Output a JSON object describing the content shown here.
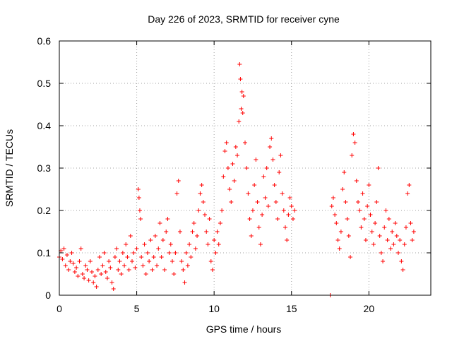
{
  "chart_data": {
    "type": "scatter",
    "title": "Day 226 of 2023, SRMTID for receiver cyne",
    "xlabel": "GPS time / hours",
    "ylabel": "SRMTID / TECUs",
    "xlim": [
      0,
      24
    ],
    "ylim": [
      0,
      0.6
    ],
    "xticks": [
      0,
      5,
      10,
      15,
      20
    ],
    "yticks": [
      0,
      0.1,
      0.2,
      0.3,
      0.4,
      0.5,
      0.6
    ],
    "xtick_labels": [
      "0",
      "5",
      "10",
      "15",
      "20"
    ],
    "ytick_labels": [
      "0",
      "0.1",
      "0.2",
      "0.3",
      "0.4",
      "0.5",
      "0.6"
    ],
    "grid": true,
    "legend": "none",
    "marker": "plus",
    "series": [
      {
        "name": "SRMTID",
        "color": "#ff0000",
        "points": [
          [
            0.0,
            0.09
          ],
          [
            0.1,
            0.105
          ],
          [
            0.2,
            0.085
          ],
          [
            0.3,
            0.11
          ],
          [
            0.4,
            0.07
          ],
          [
            0.5,
            0.095
          ],
          [
            0.6,
            0.06
          ],
          [
            0.7,
            0.08
          ],
          [
            0.8,
            0.1
          ],
          [
            0.9,
            0.075
          ],
          [
            1.0,
            0.055
          ],
          [
            1.1,
            0.065
          ],
          [
            1.2,
            0.045
          ],
          [
            1.3,
            0.08
          ],
          [
            1.4,
            0.11
          ],
          [
            1.5,
            0.05
          ],
          [
            1.6,
            0.04
          ],
          [
            1.7,
            0.07
          ],
          [
            1.8,
            0.06
          ],
          [
            1.9,
            0.035
          ],
          [
            2.0,
            0.08
          ],
          [
            2.1,
            0.055
          ],
          [
            2.2,
            0.03
          ],
          [
            2.3,
            0.045
          ],
          [
            2.4,
            0.02
          ],
          [
            2.5,
            0.06
          ],
          [
            2.6,
            0.09
          ],
          [
            2.7,
            0.05
          ],
          [
            2.8,
            0.07
          ],
          [
            2.9,
            0.1
          ],
          [
            3.0,
            0.055
          ],
          [
            3.1,
            0.04
          ],
          [
            3.2,
            0.08
          ],
          [
            3.3,
            0.065
          ],
          [
            3.4,
            0.03
          ],
          [
            3.5,
            0.015
          ],
          [
            3.6,
            0.09
          ],
          [
            3.7,
            0.11
          ],
          [
            3.8,
            0.06
          ],
          [
            3.9,
            0.08
          ],
          [
            4.0,
            0.05
          ],
          [
            4.1,
            0.1
          ],
          [
            4.2,
            0.07
          ],
          [
            4.3,
            0.12
          ],
          [
            4.4,
            0.09
          ],
          [
            4.5,
            0.06
          ],
          [
            4.6,
            0.14
          ],
          [
            4.7,
            0.08
          ],
          [
            4.8,
            0.1
          ],
          [
            4.9,
            0.065
          ],
          [
            5.0,
            0.11
          ],
          [
            5.1,
            0.25
          ],
          [
            5.15,
            0.23
          ],
          [
            5.2,
            0.2
          ],
          [
            5.25,
            0.18
          ],
          [
            5.3,
            0.09
          ],
          [
            5.4,
            0.07
          ],
          [
            5.5,
            0.12
          ],
          [
            5.6,
            0.05
          ],
          [
            5.7,
            0.1
          ],
          [
            5.8,
            0.08
          ],
          [
            5.9,
            0.13
          ],
          [
            6.0,
            0.06
          ],
          [
            6.1,
            0.09
          ],
          [
            6.2,
            0.14
          ],
          [
            6.3,
            0.07
          ],
          [
            6.4,
            0.11
          ],
          [
            6.5,
            0.17
          ],
          [
            6.6,
            0.09
          ],
          [
            6.7,
            0.13
          ],
          [
            6.8,
            0.06
          ],
          [
            6.9,
            0.15
          ],
          [
            7.0,
            0.18
          ],
          [
            7.1,
            0.1
          ],
          [
            7.2,
            0.12
          ],
          [
            7.3,
            0.08
          ],
          [
            7.4,
            0.05
          ],
          [
            7.5,
            0.1
          ],
          [
            7.6,
            0.24
          ],
          [
            7.7,
            0.27
          ],
          [
            7.8,
            0.15
          ],
          [
            7.9,
            0.08
          ],
          [
            8.0,
            0.06
          ],
          [
            8.1,
            0.03
          ],
          [
            8.2,
            0.1
          ],
          [
            8.3,
            0.07
          ],
          [
            8.4,
            0.12
          ],
          [
            8.5,
            0.09
          ],
          [
            8.6,
            0.15
          ],
          [
            8.7,
            0.17
          ],
          [
            8.8,
            0.11
          ],
          [
            8.9,
            0.14
          ],
          [
            9.0,
            0.2
          ],
          [
            9.1,
            0.24
          ],
          [
            9.2,
            0.26
          ],
          [
            9.3,
            0.22
          ],
          [
            9.4,
            0.19
          ],
          [
            9.5,
            0.15
          ],
          [
            9.6,
            0.12
          ],
          [
            9.7,
            0.18
          ],
          [
            9.8,
            0.08
          ],
          [
            9.9,
            0.06
          ],
          [
            10.0,
            0.13
          ],
          [
            10.1,
            0.1
          ],
          [
            10.2,
            0.15
          ],
          [
            10.3,
            0.12
          ],
          [
            10.4,
            0.17
          ],
          [
            10.5,
            0.2
          ],
          [
            10.6,
            0.28
          ],
          [
            10.7,
            0.34
          ],
          [
            10.8,
            0.36
          ],
          [
            10.9,
            0.3
          ],
          [
            11.0,
            0.25
          ],
          [
            11.1,
            0.22
          ],
          [
            11.2,
            0.31
          ],
          [
            11.3,
            0.27
          ],
          [
            11.4,
            0.35
          ],
          [
            11.5,
            0.33
          ],
          [
            11.6,
            0.41
          ],
          [
            11.65,
            0.545
          ],
          [
            11.7,
            0.51
          ],
          [
            11.75,
            0.44
          ],
          [
            11.8,
            0.48
          ],
          [
            11.85,
            0.43
          ],
          [
            11.9,
            0.47
          ],
          [
            12.0,
            0.36
          ],
          [
            12.1,
            0.3
          ],
          [
            12.2,
            0.24
          ],
          [
            12.3,
            0.18
          ],
          [
            12.4,
            0.14
          ],
          [
            12.5,
            0.2
          ],
          [
            12.6,
            0.26
          ],
          [
            12.7,
            0.32
          ],
          [
            12.8,
            0.22
          ],
          [
            12.9,
            0.16
          ],
          [
            13.0,
            0.12
          ],
          [
            13.1,
            0.19
          ],
          [
            13.2,
            0.28
          ],
          [
            13.3,
            0.23
          ],
          [
            13.4,
            0.3
          ],
          [
            13.5,
            0.21
          ],
          [
            13.6,
            0.35
          ],
          [
            13.7,
            0.37
          ],
          [
            13.8,
            0.32
          ],
          [
            13.9,
            0.26
          ],
          [
            14.0,
            0.22
          ],
          [
            14.1,
            0.18
          ],
          [
            14.2,
            0.29
          ],
          [
            14.3,
            0.33
          ],
          [
            14.4,
            0.24
          ],
          [
            14.5,
            0.2
          ],
          [
            14.6,
            0.16
          ],
          [
            14.7,
            0.13
          ],
          [
            14.8,
            0.19
          ],
          [
            14.9,
            0.23
          ],
          [
            15.0,
            0.21
          ],
          [
            15.1,
            0.18
          ],
          [
            15.2,
            0.2
          ],
          [
            17.5,
            0.0
          ],
          [
            17.6,
            0.21
          ],
          [
            17.7,
            0.23
          ],
          [
            17.8,
            0.19
          ],
          [
            17.9,
            0.17
          ],
          [
            18.0,
            0.13
          ],
          [
            18.1,
            0.11
          ],
          [
            18.2,
            0.15
          ],
          [
            18.3,
            0.25
          ],
          [
            18.4,
            0.29
          ],
          [
            18.5,
            0.22
          ],
          [
            18.6,
            0.18
          ],
          [
            18.7,
            0.14
          ],
          [
            18.8,
            0.09
          ],
          [
            18.9,
            0.33
          ],
          [
            19.0,
            0.38
          ],
          [
            19.1,
            0.36
          ],
          [
            19.2,
            0.27
          ],
          [
            19.3,
            0.22
          ],
          [
            19.4,
            0.2
          ],
          [
            19.5,
            0.16
          ],
          [
            19.6,
            0.24
          ],
          [
            19.7,
            0.18
          ],
          [
            19.8,
            0.13
          ],
          [
            19.9,
            0.21
          ],
          [
            20.0,
            0.26
          ],
          [
            20.1,
            0.19
          ],
          [
            20.2,
            0.15
          ],
          [
            20.3,
            0.12
          ],
          [
            20.4,
            0.17
          ],
          [
            20.5,
            0.22
          ],
          [
            20.6,
            0.3
          ],
          [
            20.7,
            0.14
          ],
          [
            20.8,
            0.1
          ],
          [
            20.9,
            0.08
          ],
          [
            21.0,
            0.16
          ],
          [
            21.1,
            0.2
          ],
          [
            21.2,
            0.13
          ],
          [
            21.3,
            0.18
          ],
          [
            21.4,
            0.11
          ],
          [
            21.5,
            0.15
          ],
          [
            21.6,
            0.12
          ],
          [
            21.7,
            0.17
          ],
          [
            21.8,
            0.14
          ],
          [
            21.9,
            0.1
          ],
          [
            22.0,
            0.13
          ],
          [
            22.1,
            0.08
          ],
          [
            22.2,
            0.06
          ],
          [
            22.3,
            0.12
          ],
          [
            22.4,
            0.16
          ],
          [
            22.5,
            0.24
          ],
          [
            22.6,
            0.26
          ],
          [
            22.7,
            0.17
          ],
          [
            22.8,
            0.13
          ],
          [
            22.9,
            0.15
          ]
        ]
      }
    ]
  }
}
